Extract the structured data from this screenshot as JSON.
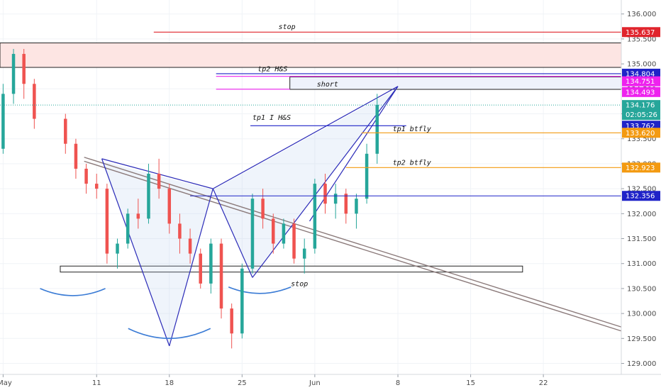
{
  "chart_data": {
    "type": "candlestick",
    "price_axis": {
      "ticks": [
        "136.000",
        "135.500",
        "135.000",
        "134.500",
        "134.000",
        "133.500",
        "133.000",
        "132.500",
        "132.000",
        "131.500",
        "131.000",
        "130.500",
        "130.000",
        "129.500",
        "129.000"
      ],
      "tick_values": [
        136.0,
        135.5,
        135.0,
        134.5,
        134.0,
        133.5,
        133.0,
        132.5,
        132.0,
        131.5,
        131.0,
        130.5,
        130.0,
        129.5,
        129.0
      ],
      "range": [
        128.78,
        136.28
      ]
    },
    "time_axis": {
      "labels": [
        "May",
        "11",
        "18",
        "25",
        "Jun",
        "8",
        "15",
        "22"
      ],
      "label_day_index": [
        0,
        9,
        16,
        23,
        30,
        38,
        45,
        52
      ],
      "range": [
        -0.3,
        59.5
      ]
    },
    "candles": [
      [
        133.3,
        134.6,
        133.2,
        134.4
      ],
      [
        134.4,
        135.3,
        134.2,
        135.2
      ],
      [
        135.2,
        135.3,
        134.3,
        134.6
      ],
      [
        134.6,
        134.7,
        133.7,
        133.9
      ],
      [
        133.9,
        134.0,
        133.2,
        133.4
      ],
      [
        133.4,
        133.5,
        132.7,
        132.9
      ],
      [
        132.9,
        133.0,
        132.4,
        132.6
      ],
      [
        132.6,
        132.8,
        132.3,
        132.5
      ],
      [
        132.5,
        132.6,
        131.0,
        131.2
      ],
      [
        131.2,
        131.5,
        130.9,
        131.4
      ],
      [
        131.4,
        132.1,
        131.3,
        132.0
      ],
      [
        132.0,
        132.3,
        131.7,
        131.9
      ],
      [
        131.9,
        133.0,
        131.8,
        132.8
      ],
      [
        132.8,
        133.1,
        132.3,
        132.5
      ],
      [
        132.5,
        132.6,
        131.6,
        131.8
      ],
      [
        131.8,
        132.0,
        131.2,
        131.5
      ],
      [
        131.5,
        131.7,
        131.0,
        131.2
      ],
      [
        131.2,
        131.3,
        130.5,
        130.6
      ],
      [
        130.6,
        131.5,
        130.4,
        131.4
      ],
      [
        131.4,
        131.5,
        129.9,
        130.1
      ],
      [
        130.1,
        130.2,
        129.3,
        129.6
      ],
      [
        129.6,
        131.0,
        129.5,
        130.9
      ],
      [
        130.9,
        132.4,
        130.8,
        132.3
      ],
      [
        132.3,
        132.5,
        131.7,
        131.9
      ],
      [
        131.9,
        132.0,
        131.2,
        131.4
      ],
      [
        131.4,
        131.9,
        131.3,
        131.8
      ],
      [
        131.8,
        131.9,
        131.0,
        131.1
      ],
      [
        131.1,
        131.5,
        130.8,
        131.3
      ],
      [
        131.3,
        132.7,
        131.2,
        132.6
      ],
      [
        132.6,
        132.8,
        132.0,
        132.2
      ],
      [
        132.2,
        132.6,
        131.9,
        132.4
      ],
      [
        132.4,
        132.5,
        131.8,
        132.0
      ],
      [
        132.0,
        132.4,
        131.7,
        132.3
      ],
      [
        132.3,
        133.4,
        132.2,
        133.2
      ],
      [
        133.2,
        134.4,
        133.0,
        134.18
      ]
    ],
    "candle_day_index": [
      0,
      1,
      2,
      3,
      6,
      7,
      8,
      9,
      10,
      11,
      12,
      13,
      14,
      15,
      16,
      17,
      18,
      19,
      20,
      21,
      22,
      23,
      24,
      25,
      26,
      27,
      28,
      29,
      30,
      31,
      32,
      33,
      34,
      35,
      36
    ],
    "current_price": 134.176,
    "countdown": "02:05:26",
    "horizontal_levels": [
      {
        "name": "stop",
        "price": 135.637,
        "color": "#e0242c",
        "label": "stop",
        "badge": "135.637"
      },
      {
        "name": "tp2-hs",
        "price": 134.804,
        "color": "#1f23c8",
        "label": "tp2 H&S",
        "badge": "134.804"
      },
      {
        "name": "magenta-upper",
        "price": 134.751,
        "color": "#ee22ee",
        "badge": "134.751"
      },
      {
        "name": "magenta-lower",
        "price": 134.493,
        "color": "#ee22ee",
        "badge": "134.493"
      },
      {
        "name": "tp1-ihs",
        "price": 133.762,
        "color": "#1f23c8",
        "label": "tp1 I H&S",
        "badge": "133.762"
      },
      {
        "name": "tp1-btfly",
        "price": 133.62,
        "color": "#f39a11",
        "label": "tp1 btfly",
        "badge": "133.620"
      },
      {
        "name": "tp2-btfly",
        "price": 132.923,
        "color": "#f39a11",
        "label": "tp2 btfly",
        "badge": "132.923"
      },
      {
        "name": "neck",
        "price": 132.356,
        "color": "#1f23c8",
        "badge": "132.356"
      }
    ],
    "boxes": [
      {
        "name": "resistance-zone",
        "p1": 135.42,
        "p2": 134.93,
        "d1": -0.3,
        "d2": 59.5,
        "fill": "#fde5e3",
        "stroke": "#222222"
      },
      {
        "name": "short-box",
        "p1": 134.74,
        "p2": 134.49,
        "d1": 27.6,
        "d2": 59.5,
        "fill": "#eef2fb",
        "stroke": "#222222",
        "label": "short"
      },
      {
        "name": "stop-box",
        "p1": 130.95,
        "p2": 130.83,
        "d1": 5.5,
        "d2": 50.0,
        "fill": "#ffffff",
        "stroke": "#222222",
        "label": "stop"
      }
    ],
    "annotations": [
      "stop",
      "tp2 H&S",
      "short",
      "tp1 I H&S",
      "tp1 btfly",
      "tp2 btfly",
      "stop"
    ],
    "colors": {
      "up": "#26a69a",
      "down": "#ef5350",
      "current": "#26a69a",
      "trend": "#8b7a7a",
      "pattern": "#2b2bb8"
    }
  }
}
